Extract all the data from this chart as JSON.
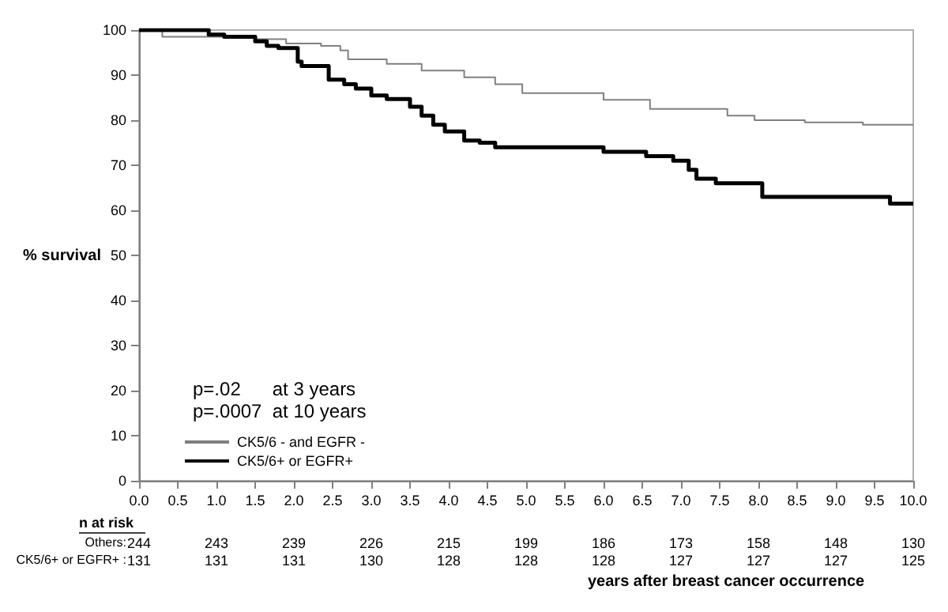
{
  "chart_data": {
    "type": "step",
    "xlabel": "years after breast cancer occurrence",
    "ylabel": "% survival",
    "xlim": [
      0,
      10
    ],
    "ylim": [
      0,
      100
    ],
    "xticks": [
      {
        "value": 0,
        "label": "0.0"
      },
      {
        "value": 0.5,
        "label": "0.5"
      },
      {
        "value": 1,
        "label": "1.0"
      },
      {
        "value": 1.5,
        "label": "1.5"
      },
      {
        "value": 2,
        "label": "2.0"
      },
      {
        "value": 2.5,
        "label": "2.5"
      },
      {
        "value": 3,
        "label": "3.0"
      },
      {
        "value": 3.5,
        "label": "3.5"
      },
      {
        "value": 4,
        "label": "4.0"
      },
      {
        "value": 4.5,
        "label": "4.5"
      },
      {
        "value": 5,
        "label": "5.0"
      },
      {
        "value": 5.5,
        "label": "5.5"
      },
      {
        "value": 6,
        "label": "6.0"
      },
      {
        "value": 6.5,
        "label": "6.5"
      },
      {
        "value": 7,
        "label": "7.0"
      },
      {
        "value": 7.5,
        "label": "7.5"
      },
      {
        "value": 8,
        "label": "8.0"
      },
      {
        "value": 8.5,
        "label": "8.5"
      },
      {
        "value": 9,
        "label": "9.0"
      },
      {
        "value": 9.5,
        "label": "9.5"
      },
      {
        "value": 10,
        "label": "10.0"
      }
    ],
    "yticks": [
      0,
      10,
      20,
      30,
      40,
      50,
      60,
      70,
      80,
      90,
      100
    ],
    "grid": false,
    "legend": "bottom left",
    "marker": "none",
    "line_style": "solid",
    "series": [
      {
        "name": "CK5/6 - and EGFR -",
        "color": "#808080",
        "x": [
          0,
          0.3,
          1.5,
          1.9,
          2.35,
          2.6,
          2.7,
          3.2,
          3.65,
          4.2,
          4.6,
          4.95,
          6.0,
          6.6,
          7.6,
          7.95,
          8.6,
          9.35,
          10
        ],
        "values": [
          100,
          98.5,
          98,
          97,
          96.5,
          95.5,
          93.5,
          92.5,
          91,
          89.5,
          88,
          86,
          84.5,
          82.5,
          81,
          80,
          79.5,
          79,
          79
        ]
      },
      {
        "name": "CK5/6+ or EGFR+",
        "color": "#000000",
        "x": [
          0,
          0.9,
          1.1,
          1.5,
          1.65,
          1.8,
          2.05,
          2.1,
          2.45,
          2.65,
          2.8,
          3.0,
          3.2,
          3.5,
          3.65,
          3.8,
          3.95,
          4.2,
          4.4,
          4.6,
          6.0,
          6.55,
          6.9,
          7.1,
          7.2,
          7.45,
          8.05,
          9.7,
          10
        ],
        "values": [
          100,
          99,
          98.5,
          97.5,
          96.5,
          96,
          93,
          92,
          89,
          88,
          87,
          85.5,
          84.7,
          83,
          81,
          79,
          77.5,
          75.5,
          75,
          74,
          73,
          72,
          71,
          69,
          67,
          66,
          63,
          61.5,
          61.5
        ]
      }
    ],
    "annotations": [
      "p=.02      at 3 years",
      "p=.0007  at 10 years",
      "n at risk",
      "Others:",
      "244",
      "243",
      "239",
      "226",
      "215",
      "199",
      "186",
      "173",
      "158",
      "148",
      "130",
      "CK5/6+ or EGFR+ :",
      "131",
      "131",
      "131",
      "130",
      "128",
      "128",
      "128",
      "127",
      "127",
      "127",
      "125"
    ]
  }
}
